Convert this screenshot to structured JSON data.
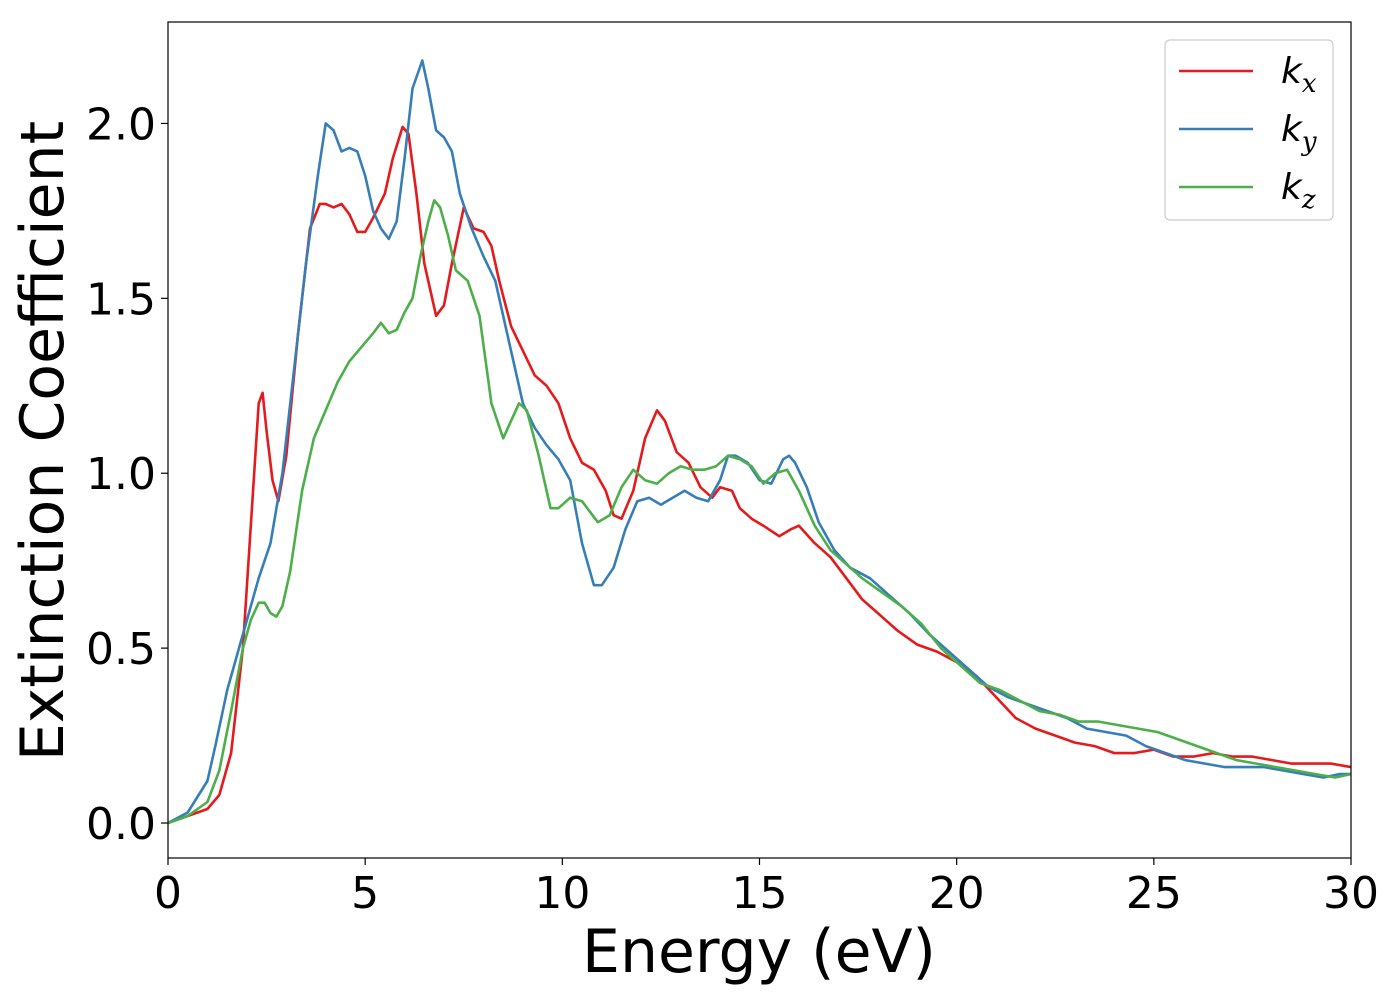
{
  "chart_data": {
    "type": "line",
    "title": "",
    "xlabel": "Energy (eV)",
    "ylabel": "Extinction Coefficient",
    "xlim": [
      0,
      30
    ],
    "ylim": [
      -0.1,
      2.29
    ],
    "xticks": [
      0,
      5,
      10,
      15,
      20,
      25,
      30
    ],
    "xtick_labels": [
      "0",
      "5",
      "10",
      "15",
      "20",
      "25",
      "30"
    ],
    "yticks": [
      0.0,
      0.5,
      1.0,
      1.5,
      2.0
    ],
    "ytick_labels": [
      "0.0",
      "0.5",
      "1.0",
      "1.5",
      "2.0"
    ],
    "grid": false,
    "legend_position": "top-right",
    "series": [
      {
        "name": "k_x",
        "label_main": "k",
        "label_sub": "x",
        "color": "#e41a1c",
        "x": [
          0,
          0.5,
          1.0,
          1.3,
          1.6,
          1.9,
          2.1,
          2.3,
          2.4,
          2.5,
          2.65,
          2.8,
          3.0,
          3.3,
          3.6,
          3.85,
          4.0,
          4.2,
          4.4,
          4.6,
          4.8,
          5.0,
          5.2,
          5.5,
          5.7,
          5.95,
          6.1,
          6.3,
          6.5,
          6.8,
          7.0,
          7.2,
          7.5,
          7.75,
          8.0,
          8.2,
          8.4,
          8.7,
          9.0,
          9.3,
          9.6,
          9.9,
          10.2,
          10.5,
          10.8,
          11.1,
          11.3,
          11.5,
          11.8,
          12.1,
          12.4,
          12.6,
          12.9,
          13.2,
          13.5,
          13.8,
          14.0,
          14.3,
          14.5,
          14.8,
          15.1,
          15.5,
          15.8,
          16.0,
          16.4,
          16.8,
          17.2,
          17.6,
          18.0,
          18.5,
          19.0,
          19.5,
          20.0,
          20.5,
          21.0,
          21.5,
          22.0,
          22.5,
          23.0,
          23.5,
          24.0,
          24.5,
          25.0,
          25.5,
          26.0,
          26.5,
          27.0,
          27.5,
          28.0,
          28.5,
          29.0,
          29.5,
          30.0
        ],
        "values": [
          0.0,
          0.02,
          0.04,
          0.08,
          0.2,
          0.5,
          0.85,
          1.2,
          1.23,
          1.12,
          0.98,
          0.92,
          1.05,
          1.4,
          1.7,
          1.77,
          1.77,
          1.76,
          1.77,
          1.74,
          1.69,
          1.69,
          1.73,
          1.8,
          1.9,
          1.99,
          1.97,
          1.8,
          1.6,
          1.45,
          1.48,
          1.6,
          1.76,
          1.7,
          1.69,
          1.65,
          1.55,
          1.42,
          1.35,
          1.28,
          1.25,
          1.2,
          1.1,
          1.03,
          1.01,
          0.95,
          0.88,
          0.87,
          0.95,
          1.1,
          1.18,
          1.15,
          1.06,
          1.03,
          0.96,
          0.93,
          0.96,
          0.95,
          0.9,
          0.87,
          0.85,
          0.82,
          0.84,
          0.85,
          0.8,
          0.76,
          0.7,
          0.64,
          0.6,
          0.55,
          0.51,
          0.49,
          0.46,
          0.42,
          0.36,
          0.3,
          0.27,
          0.25,
          0.23,
          0.22,
          0.2,
          0.2,
          0.21,
          0.19,
          0.19,
          0.2,
          0.19,
          0.19,
          0.18,
          0.17,
          0.17,
          0.17,
          0.16
        ]
      },
      {
        "name": "k_y",
        "label_main": "k",
        "label_sub": "y",
        "color": "#377eb8",
        "x": [
          0,
          0.5,
          1.0,
          1.2,
          1.5,
          1.8,
          2.0,
          2.3,
          2.6,
          2.9,
          3.2,
          3.5,
          3.8,
          4.0,
          4.2,
          4.4,
          4.6,
          4.8,
          5.0,
          5.2,
          5.4,
          5.6,
          5.8,
          6.0,
          6.2,
          6.45,
          6.6,
          6.8,
          7.0,
          7.2,
          7.4,
          7.7,
          8.0,
          8.3,
          8.6,
          9.0,
          9.3,
          9.6,
          9.9,
          10.2,
          10.5,
          10.8,
          11.0,
          11.3,
          11.6,
          11.9,
          12.2,
          12.5,
          12.8,
          13.1,
          13.4,
          13.7,
          14.0,
          14.2,
          14.4,
          14.7,
          15.0,
          15.3,
          15.6,
          15.75,
          15.9,
          16.2,
          16.5,
          16.9,
          17.3,
          17.8,
          18.3,
          18.8,
          19.3,
          19.8,
          20.3,
          20.8,
          21.3,
          21.8,
          22.3,
          22.8,
          23.3,
          23.8,
          24.3,
          24.8,
          25.3,
          25.8,
          26.3,
          26.8,
          27.3,
          27.8,
          28.3,
          28.8,
          29.3,
          29.7,
          30.0
        ],
        "values": [
          0.0,
          0.03,
          0.12,
          0.22,
          0.38,
          0.5,
          0.58,
          0.7,
          0.8,
          1.0,
          1.3,
          1.6,
          1.85,
          2.0,
          1.98,
          1.92,
          1.93,
          1.92,
          1.85,
          1.75,
          1.7,
          1.67,
          1.72,
          1.9,
          2.1,
          2.18,
          2.1,
          1.98,
          1.96,
          1.92,
          1.8,
          1.7,
          1.62,
          1.55,
          1.4,
          1.2,
          1.13,
          1.08,
          1.04,
          0.98,
          0.8,
          0.68,
          0.68,
          0.73,
          0.84,
          0.92,
          0.93,
          0.91,
          0.93,
          0.95,
          0.93,
          0.92,
          0.98,
          1.05,
          1.05,
          1.03,
          0.98,
          0.97,
          1.04,
          1.05,
          1.03,
          0.96,
          0.86,
          0.78,
          0.73,
          0.7,
          0.65,
          0.6,
          0.54,
          0.49,
          0.44,
          0.39,
          0.36,
          0.34,
          0.32,
          0.3,
          0.27,
          0.26,
          0.25,
          0.22,
          0.2,
          0.18,
          0.17,
          0.16,
          0.16,
          0.16,
          0.15,
          0.14,
          0.13,
          0.14,
          0.14
        ]
      },
      {
        "name": "k_z",
        "label_main": "k",
        "label_sub": "z",
        "color": "#4daf4a",
        "x": [
          0,
          0.5,
          1.0,
          1.3,
          1.6,
          1.9,
          2.1,
          2.3,
          2.45,
          2.6,
          2.75,
          2.9,
          3.1,
          3.4,
          3.7,
          4.0,
          4.3,
          4.6,
          4.9,
          5.2,
          5.4,
          5.6,
          5.8,
          6.0,
          6.2,
          6.4,
          6.6,
          6.75,
          6.9,
          7.1,
          7.3,
          7.6,
          7.9,
          8.2,
          8.5,
          8.7,
          8.9,
          9.1,
          9.4,
          9.7,
          9.9,
          10.2,
          10.5,
          10.9,
          11.2,
          11.5,
          11.8,
          12.1,
          12.4,
          12.7,
          13.0,
          13.3,
          13.6,
          13.9,
          14.2,
          14.5,
          14.8,
          15.1,
          15.4,
          15.7,
          16.0,
          16.4,
          16.8,
          17.2,
          17.6,
          18.1,
          18.6,
          19.1,
          19.6,
          20.1,
          20.6,
          21.1,
          21.6,
          22.1,
          22.6,
          23.1,
          23.6,
          24.1,
          24.6,
          25.1,
          25.6,
          26.1,
          26.6,
          27.1,
          27.6,
          28.1,
          28.6,
          29.1,
          29.6,
          30.0
        ],
        "values": [
          0.0,
          0.02,
          0.06,
          0.15,
          0.32,
          0.5,
          0.58,
          0.63,
          0.63,
          0.6,
          0.59,
          0.62,
          0.72,
          0.95,
          1.1,
          1.18,
          1.26,
          1.32,
          1.36,
          1.4,
          1.43,
          1.4,
          1.41,
          1.46,
          1.5,
          1.62,
          1.72,
          1.78,
          1.76,
          1.68,
          1.58,
          1.55,
          1.45,
          1.2,
          1.1,
          1.15,
          1.2,
          1.18,
          1.05,
          0.9,
          0.9,
          0.93,
          0.92,
          0.86,
          0.88,
          0.96,
          1.01,
          0.98,
          0.97,
          1.0,
          1.02,
          1.01,
          1.01,
          1.02,
          1.05,
          1.04,
          1.02,
          0.97,
          1.0,
          1.01,
          0.95,
          0.85,
          0.78,
          0.74,
          0.7,
          0.66,
          0.62,
          0.57,
          0.5,
          0.45,
          0.4,
          0.38,
          0.35,
          0.32,
          0.31,
          0.29,
          0.29,
          0.28,
          0.27,
          0.26,
          0.24,
          0.22,
          0.2,
          0.18,
          0.17,
          0.16,
          0.15,
          0.14,
          0.13,
          0.14
        ]
      }
    ]
  }
}
